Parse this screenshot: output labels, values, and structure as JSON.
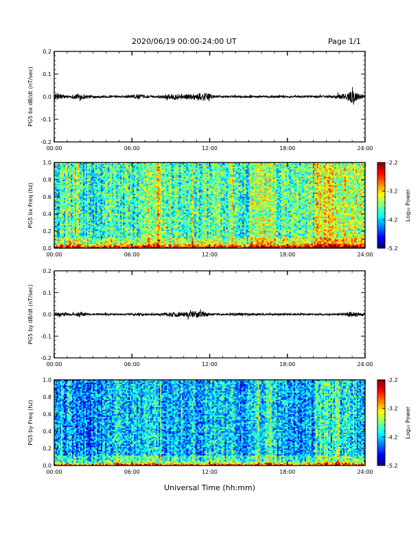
{
  "header": {
    "title": "2020/06/19  00:00-24:00 UT",
    "page": "Page 1/1"
  },
  "chart_data": [
    {
      "type": "line",
      "title": "",
      "xlabel": "",
      "ylabel": "PG5 bx dB/dt (nT/sec)",
      "x_ticks": [
        "00:00",
        "06:00",
        "12:00",
        "18:00",
        "24:00"
      ],
      "xlim": [
        "00:00",
        "24:00"
      ],
      "ylim": [
        -0.2,
        0.2
      ],
      "y_ticks": [
        "0.2",
        "0.1",
        "0.0",
        "-0.1",
        "-0.2"
      ],
      "series": [
        {
          "x_hours": [
            0,
            0.5,
            1,
            1.5,
            2,
            2.5,
            3,
            3.5,
            4,
            4.5,
            5,
            5.5,
            6,
            6.5,
            7,
            7.5,
            8,
            8.5,
            9,
            9.5,
            10,
            10.5,
            11,
            11.5,
            12,
            12.5,
            13,
            13.5,
            14,
            14.5,
            15,
            15.5,
            16,
            16.5,
            17,
            17.5,
            18,
            18.5,
            19,
            19.5,
            20,
            20.5,
            21,
            21.5,
            22,
            22.5,
            23,
            23.5,
            24
          ],
          "amplitude": [
            0.015,
            0.012,
            0.006,
            0.008,
            0.018,
            0.007,
            0.005,
            0.005,
            0.006,
            0.005,
            0.004,
            0.005,
            0.008,
            0.012,
            0.006,
            0.005,
            0.005,
            0.008,
            0.012,
            0.015,
            0.01,
            0.012,
            0.015,
            0.02,
            0.012,
            0.005,
            0.004,
            0.004,
            0.005,
            0.005,
            0.006,
            0.004,
            0.004,
            0.004,
            0.005,
            0.006,
            0.004,
            0.004,
            0.004,
            0.005,
            0.004,
            0.006,
            0.005,
            0.006,
            0.01,
            0.014,
            0.028,
            0.012,
            0.01
          ]
        }
      ]
    },
    {
      "type": "heatmap",
      "title": "",
      "xlabel": "",
      "ylabel": "PG5 bx Freq (hz)",
      "x_ticks": [
        "00:00",
        "06:00",
        "12:00",
        "18:00",
        "24:00"
      ],
      "y_ticks": [
        "1.0",
        "0.8",
        "0.6",
        "0.4",
        "0.2",
        "0.0"
      ],
      "ylim": [
        0.0,
        1.0
      ],
      "colorbar": {
        "label": "Log₁₀ Power",
        "ticks": [
          "-2.2",
          "-3.2",
          "-4.2",
          "-5.2"
        ],
        "range": [
          -5.2,
          -2.2
        ]
      },
      "background_level_by_hour": [
        -4.0,
        -4.0,
        -4.1,
        -4.1,
        -3.8,
        -3.9,
        -3.9,
        -3.6,
        -3.8,
        -3.9,
        -3.9,
        -3.9,
        -3.8,
        -3.9,
        -4.0,
        -3.6,
        -3.6,
        -3.8,
        -3.9,
        -3.9,
        -3.4,
        -3.4,
        -3.5,
        -3.6
      ]
    },
    {
      "type": "line",
      "title": "",
      "xlabel": "",
      "ylabel": "PG5 by dB/dt (nT/sec)",
      "x_ticks": [
        "00:00",
        "06:00",
        "12:00",
        "18:00",
        "24:00"
      ],
      "xlim": [
        "00:00",
        "24:00"
      ],
      "ylim": [
        -0.2,
        0.2
      ],
      "y_ticks": [
        "0.2",
        "0.1",
        "0.0",
        "-0.1",
        "-0.2"
      ],
      "series": [
        {
          "x_hours": [
            0,
            0.5,
            1,
            1.5,
            2,
            2.5,
            3,
            3.5,
            4,
            4.5,
            5,
            5.5,
            6,
            6.5,
            7,
            7.5,
            8,
            8.5,
            9,
            9.5,
            10,
            10.5,
            11,
            11.5,
            12,
            12.5,
            13,
            13.5,
            14,
            14.5,
            15,
            15.5,
            16,
            16.5,
            17,
            17.5,
            18,
            18.5,
            19,
            19.5,
            20,
            20.5,
            21,
            21.5,
            22,
            22.5,
            23,
            23.5,
            24
          ],
          "amplitude": [
            0.01,
            0.01,
            0.005,
            0.006,
            0.014,
            0.005,
            0.004,
            0.004,
            0.005,
            0.004,
            0.004,
            0.004,
            0.006,
            0.008,
            0.005,
            0.004,
            0.005,
            0.008,
            0.01,
            0.012,
            0.01,
            0.014,
            0.016,
            0.012,
            0.006,
            0.004,
            0.004,
            0.004,
            0.006,
            0.007,
            0.008,
            0.004,
            0.004,
            0.004,
            0.004,
            0.004,
            0.004,
            0.004,
            0.004,
            0.004,
            0.004,
            0.004,
            0.004,
            0.004,
            0.005,
            0.006,
            0.014,
            0.008,
            0.006
          ]
        }
      ]
    },
    {
      "type": "heatmap",
      "title": "",
      "xlabel": "Universal Time (hh:mm)",
      "ylabel": "PG5 by Freq (hz)",
      "x_ticks": [
        "00:00",
        "06:00",
        "12:00",
        "18:00",
        "24:00"
      ],
      "y_ticks": [
        "1.0",
        "0.8",
        "0.6",
        "0.4",
        "0.2",
        "0.0"
      ],
      "ylim": [
        0.0,
        1.0
      ],
      "colorbar": {
        "label": "Log₁₀ Power",
        "ticks": [
          "-2.2",
          "-3.2",
          "-4.2",
          "-5.2"
        ],
        "range": [
          -5.2,
          -2.2
        ]
      },
      "background_level_by_hour": [
        -4.4,
        -4.4,
        -4.5,
        -4.4,
        -4.2,
        -4.3,
        -4.3,
        -4.1,
        -4.3,
        -4.3,
        -4.3,
        -4.3,
        -4.2,
        -4.3,
        -4.4,
        -4.1,
        -4.1,
        -4.3,
        -4.4,
        -4.4,
        -4.0,
        -4.0,
        -4.1,
        -4.2
      ]
    }
  ]
}
